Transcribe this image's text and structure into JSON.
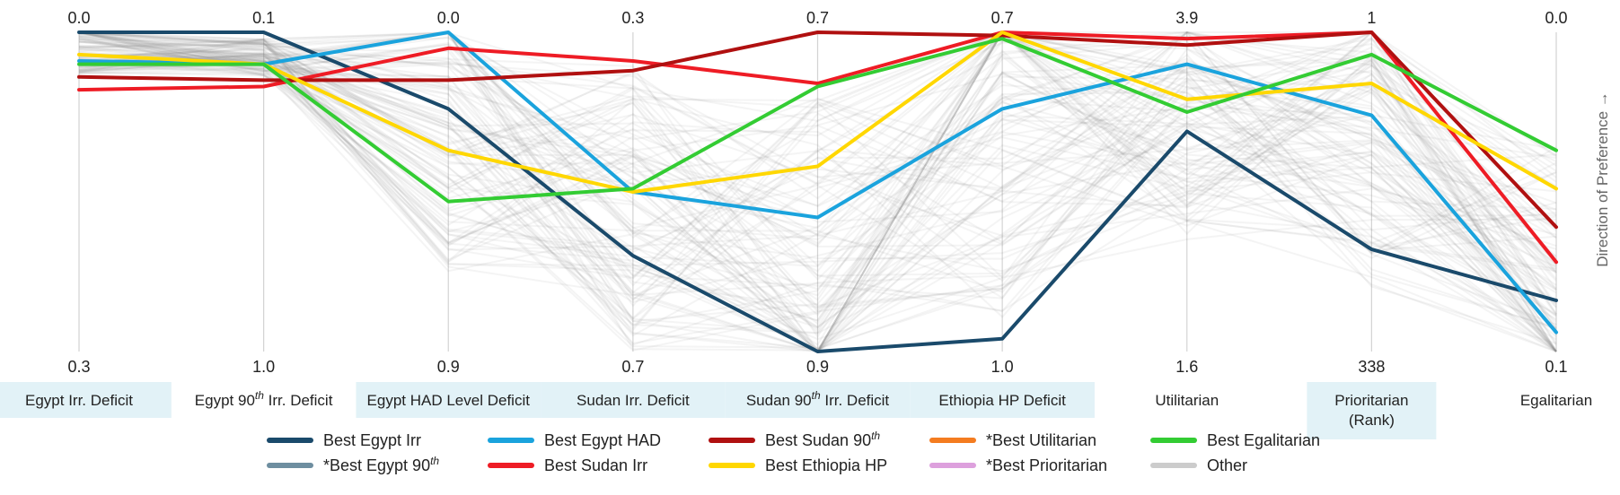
{
  "chart_data": {
    "type": "line",
    "axes": [
      {
        "name": "Egypt Irr. Deficit",
        "sup": "",
        "name_after": "",
        "top": "0.0",
        "bottom": "0.3",
        "highlighted": true
      },
      {
        "name": "Egypt 90",
        "sup": "th",
        "name_after": " Irr. Deficit",
        "top": "0.1",
        "bottom": "1.0",
        "highlighted": false
      },
      {
        "name": "Egypt HAD Level Deficit",
        "sup": "",
        "name_after": "",
        "top": "0.0",
        "bottom": "0.9",
        "highlighted": true
      },
      {
        "name": "Sudan Irr. Deficit",
        "sup": "",
        "name_after": "",
        "top": "0.3",
        "bottom": "0.7",
        "highlighted": true
      },
      {
        "name": "Sudan 90",
        "sup": "th",
        "name_after": " Irr. Deficit",
        "top": "0.7",
        "bottom": "0.9",
        "highlighted": true
      },
      {
        "name": "Ethiopia HP Deficit",
        "sup": "",
        "name_after": "",
        "top": "0.7",
        "bottom": "1.0",
        "highlighted": true
      },
      {
        "name": "Utilitarian",
        "sup": "",
        "name_after": "",
        "top": "3.9",
        "bottom": "1.6",
        "highlighted": false
      },
      {
        "name": "Prioritarian\n(Rank)",
        "sup": "",
        "name_after": "",
        "top": "1",
        "bottom": "338",
        "highlighted": true
      },
      {
        "name": "Egalitarian",
        "sup": "",
        "name_after": "",
        "top": "0.0",
        "bottom": "0.1",
        "highlighted": false
      }
    ],
    "y_range": [
      0,
      1
    ],
    "y_note": "values are normalized position from top (0) to bottom (1) of each axis",
    "direction_label": "Direction of Preference →",
    "series": [
      {
        "name": "Best Egypt Irr",
        "sup": "",
        "color": "#1a4a6b",
        "values": [
          0.0,
          0.0,
          0.24,
          0.7,
          1.0,
          0.96,
          0.31,
          0.68,
          0.84
        ]
      },
      {
        "name": "Best Egypt HAD",
        "sup": "",
        "color": "#1aa3dd",
        "values": [
          0.09,
          0.1,
          0.0,
          0.5,
          0.58,
          0.24,
          0.1,
          0.26,
          0.94
        ]
      },
      {
        "name": "Best Sudan Irr",
        "sup": "",
        "color": "#ee1c25",
        "values": [
          0.18,
          0.17,
          0.05,
          0.09,
          0.16,
          0.0,
          0.02,
          0.0,
          0.72
        ]
      },
      {
        "name": "Best Sudan 90",
        "sup": "th",
        "color": "#b01010",
        "values": [
          0.14,
          0.15,
          0.15,
          0.12,
          0.0,
          0.01,
          0.04,
          0.0,
          0.61
        ]
      },
      {
        "name": "Best Ethiopia HP",
        "sup": "",
        "color": "#ffd700",
        "values": [
          0.07,
          0.1,
          0.37,
          0.5,
          0.42,
          0.0,
          0.21,
          0.16,
          0.49
        ]
      },
      {
        "name": "Best Egalitarian",
        "sup": "",
        "color": "#33cc33",
        "values": [
          0.1,
          0.1,
          0.53,
          0.49,
          0.17,
          0.02,
          0.25,
          0.07,
          0.37
        ]
      }
    ],
    "legend": [
      {
        "name": "Best Egypt Irr",
        "sup": "",
        "color": "#1a4a6b"
      },
      {
        "name": "*Best Egypt 90",
        "sup": "th",
        "color": "#6e8ea0"
      },
      {
        "name": "Best Egypt HAD",
        "sup": "",
        "color": "#1aa3dd"
      },
      {
        "name": "Best Sudan Irr",
        "sup": "",
        "color": "#ee1c25"
      },
      {
        "name": "Best Sudan 90",
        "sup": "th",
        "color": "#b01010"
      },
      {
        "name": "Best Ethiopia HP",
        "sup": "",
        "color": "#ffd700"
      },
      {
        "name": "*Best Utilitarian",
        "sup": "",
        "color": "#f47c20"
      },
      {
        "name": "*Best Prioritarian",
        "sup": "",
        "color": "#dda0dd"
      },
      {
        "name": "Best Egalitarian",
        "sup": "",
        "color": "#33cc33"
      },
      {
        "name": "Other",
        "sup": "",
        "color": "#cccccc"
      }
    ],
    "other_count": 110,
    "grid": false,
    "legend_position": "bottom"
  }
}
